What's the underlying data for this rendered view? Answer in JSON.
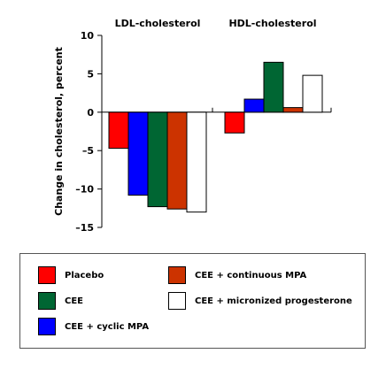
{
  "chart_data": {
    "type": "bar",
    "categories": [
      "LDL-cholesterol",
      "HDL-cholesterol"
    ],
    "ylabel": "Change in cholesterol, percent",
    "ylim": [
      -15,
      10
    ],
    "yticks": [
      10,
      5,
      0,
      -5,
      -10,
      -15
    ],
    "grid": false,
    "legend_position": "bottom",
    "series": [
      {
        "name": "Placebo",
        "color": "#ff0000",
        "values": [
          -4.7,
          -2.7
        ]
      },
      {
        "name": "CEE",
        "color": "#006633",
        "values": [
          -12.3,
          6.5
        ]
      },
      {
        "name": "CEE + cyclic MPA",
        "color": "#0000ff",
        "values": [
          -10.8,
          1.7
        ]
      },
      {
        "name": "CEE + continuous MPA",
        "color": "#cc3300",
        "values": [
          -12.6,
          0.6
        ]
      },
      {
        "name": "CEE + micronized progesterone",
        "color": "#ffffff",
        "values": [
          -13.0,
          4.8
        ]
      }
    ],
    "bar_order": [
      "Placebo",
      "CEE + cyclic MPA",
      "CEE",
      "CEE + continuous MPA",
      "CEE + micronized progesterone"
    ]
  }
}
